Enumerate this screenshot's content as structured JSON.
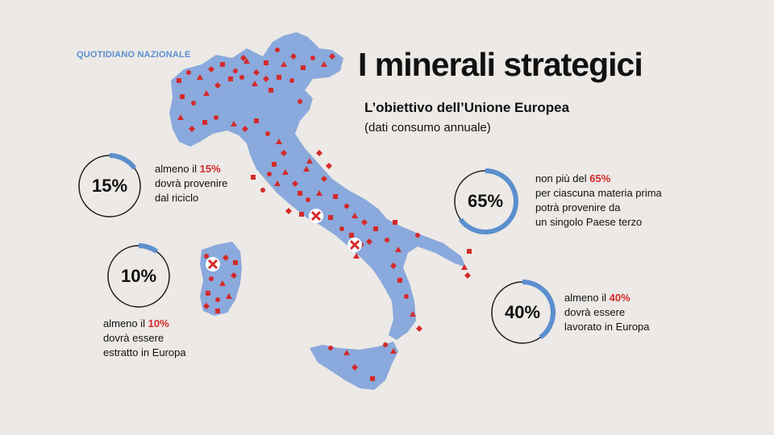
{
  "brand": "QUOTIDIANO NAZIONALE",
  "title": "I minerali strategici",
  "subtitle": "L’obiettivo dell’Unione Europea",
  "note": "(dati consumo annuale)",
  "colors": {
    "map": "#8aa9dc",
    "marker": "#d42a2a",
    "ring_track": "#1a1a1a",
    "ring_accent": "#5b8fcf",
    "highlight": "#d42a2a",
    "background": "#ece9e6"
  },
  "goals": [
    {
      "id": "riciclo",
      "percent": "15%",
      "value": 15,
      "line1_prefix": "almeno il ",
      "line1_highlight": "15%",
      "line2": "dovrà provenire",
      "line3": "dal riciclo",
      "line4": ""
    },
    {
      "id": "estratto",
      "percent": "10%",
      "value": 10,
      "line1_prefix": "almeno il ",
      "line1_highlight": "10%",
      "line2": "dovrà essere",
      "line3": "estratto in Europa",
      "line4": ""
    },
    {
      "id": "paese-terzo",
      "percent": "65%",
      "value": 65,
      "line1_prefix": "non più del ",
      "line1_highlight": "65%",
      "line2": "per ciascuna materia prima",
      "line3": "potrà provenire da",
      "line4": "un singolo Paese terzo"
    },
    {
      "id": "lavorato",
      "percent": "40%",
      "value": 40,
      "line1_prefix": "almeno il ",
      "line1_highlight": "40%",
      "line2": "dovrà essere",
      "line3": "lavorato in Europa",
      "line4": ""
    }
  ]
}
